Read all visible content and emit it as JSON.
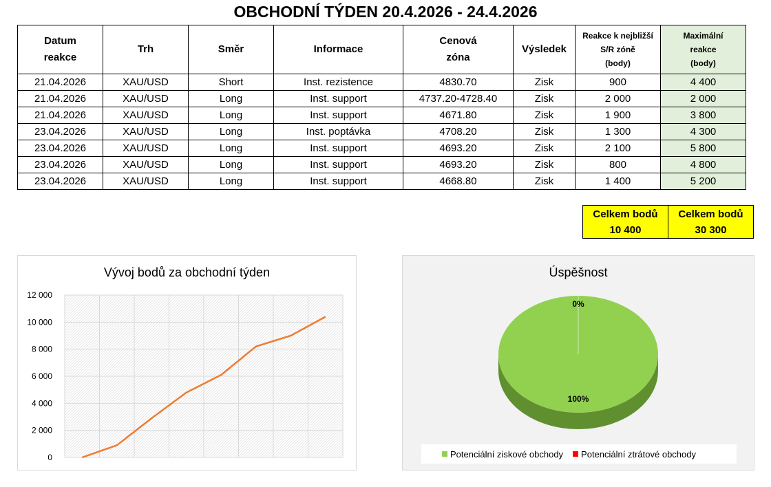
{
  "title": "OBCHODNÍ TÝDEN 20.4.2026 - 24.4.2026",
  "table": {
    "headers": {
      "datum": [
        "Datum",
        "reakce"
      ],
      "trh": "Trh",
      "smer": "Směr",
      "informace": "Informace",
      "cenova": [
        "Cenová",
        "zóna"
      ],
      "vysledek": "Výsledek",
      "reakce": [
        "Reakce k nejbližší",
        "S/R zóně",
        "(body)"
      ],
      "max": [
        "Maximální",
        "reakce",
        "(body)"
      ]
    },
    "rows": [
      {
        "datum": "21.04.2026",
        "trh": "XAU/USD",
        "smer": "Short",
        "info": "Inst. rezistence",
        "zona": "4830.70",
        "vysledek": "Zisk",
        "reakce": "900",
        "max": "4 400"
      },
      {
        "datum": "21.04.2026",
        "trh": "XAU/USD",
        "smer": "Long",
        "info": "Inst. support",
        "zona": "4737.20-4728.40",
        "vysledek": "Zisk",
        "reakce": "2 000",
        "max": "2 000"
      },
      {
        "datum": "21.04.2026",
        "trh": "XAU/USD",
        "smer": "Long",
        "info": "Inst. support",
        "zona": "4671.80",
        "vysledek": "Zisk",
        "reakce": "1 900",
        "max": "3 800"
      },
      {
        "datum": "23.04.2026",
        "trh": "XAU/USD",
        "smer": "Long",
        "info": "Inst. poptávka",
        "zona": "4708.20",
        "vysledek": "Zisk",
        "reakce": "1 300",
        "max": "4 300"
      },
      {
        "datum": "23.04.2026",
        "trh": "XAU/USD",
        "smer": "Long",
        "info": "Inst. support",
        "zona": "4693.20",
        "vysledek": "Zisk",
        "reakce": "2 100",
        "max": "5 800"
      },
      {
        "datum": "23.04.2026",
        "trh": "XAU/USD",
        "smer": "Long",
        "info": "Inst. support",
        "zona": "4693.20",
        "vysledek": "Zisk",
        "reakce": "800",
        "max": "4 800"
      },
      {
        "datum": "23.04.2026",
        "trh": "XAU/USD",
        "smer": "Long",
        "info": "Inst. support",
        "zona": "4668.80",
        "vysledek": "Zisk",
        "reakce": "1 400",
        "max": "5 200"
      }
    ]
  },
  "totals": [
    {
      "label": "Celkem bodů",
      "value": "10 400"
    },
    {
      "label": "Celkem bodů",
      "value": "30 300"
    }
  ],
  "chart_data": [
    {
      "type": "line",
      "title": "Vývoj bodů za obchodní týden",
      "x": [
        0,
        1,
        2,
        3,
        4,
        5,
        6,
        7
      ],
      "series": [
        {
          "values": [
            0,
            900,
            2900,
            4800,
            6100,
            8200,
            9000,
            10400
          ]
        }
      ],
      "ylim": [
        0,
        12000
      ],
      "yticks": [
        "0",
        "2 000",
        "4 000",
        "6 000",
        "8 000",
        "10 000",
        "12 000"
      ],
      "grid": true,
      "color": "#ed7d31"
    },
    {
      "type": "pie",
      "title": "Úspěšnost",
      "slices": [
        {
          "name": "Potenciální ziskové obchody",
          "value": 100,
          "label": "100%",
          "color": "#92d050"
        },
        {
          "name": "Potenciální ztrátové obchody",
          "value": 0,
          "label": "0%",
          "color": "#ff0000"
        }
      ],
      "legend": "bottom"
    }
  ]
}
